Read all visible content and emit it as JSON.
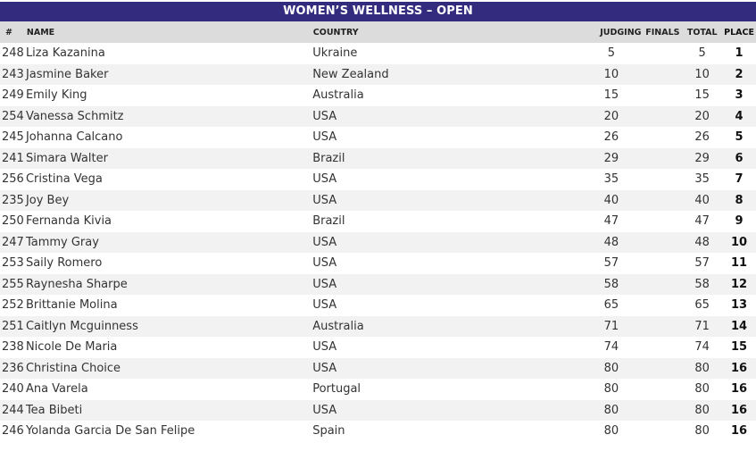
{
  "title": "WOMEN’S WELLNESS – OPEN",
  "headers": {
    "num": "#",
    "name": "NAME",
    "country": "COUNTRY",
    "judging": "JUDGING",
    "finals": "FINALS",
    "total": "TOTAL",
    "place": "PLACE"
  },
  "rows": [
    {
      "num": "248",
      "name": "Liza Kazanina",
      "country": "Ukraine",
      "judging": "5",
      "finals": "",
      "total": "5",
      "place": "1"
    },
    {
      "num": "243",
      "name": "Jasmine Baker",
      "country": "New Zealand",
      "judging": "10",
      "finals": "",
      "total": "10",
      "place": "2"
    },
    {
      "num": "249",
      "name": "Emily King",
      "country": "Australia",
      "judging": "15",
      "finals": "",
      "total": "15",
      "place": "3"
    },
    {
      "num": "254",
      "name": "Vanessa Schmitz",
      "country": "USA",
      "judging": "20",
      "finals": "",
      "total": "20",
      "place": "4"
    },
    {
      "num": "245",
      "name": "Johanna Calcano",
      "country": "USA",
      "judging": "26",
      "finals": "",
      "total": "26",
      "place": "5"
    },
    {
      "num": "241",
      "name": "Simara Walter",
      "country": "Brazil",
      "judging": "29",
      "finals": "",
      "total": "29",
      "place": "6"
    },
    {
      "num": "256",
      "name": "Cristina Vega",
      "country": "USA",
      "judging": "35",
      "finals": "",
      "total": "35",
      "place": "7"
    },
    {
      "num": "235",
      "name": "Joy Bey",
      "country": "USA",
      "judging": "40",
      "finals": "",
      "total": "40",
      "place": "8"
    },
    {
      "num": "250",
      "name": "Fernanda Kivia",
      "country": "Brazil",
      "judging": "47",
      "finals": "",
      "total": "47",
      "place": "9"
    },
    {
      "num": "247",
      "name": "Tammy Gray",
      "country": "USA",
      "judging": "48",
      "finals": "",
      "total": "48",
      "place": "10"
    },
    {
      "num": "253",
      "name": "Saily Romero",
      "country": "USA",
      "judging": "57",
      "finals": "",
      "total": "57",
      "place": "11"
    },
    {
      "num": "255",
      "name": "Raynesha Sharpe",
      "country": "USA",
      "judging": "58",
      "finals": "",
      "total": "58",
      "place": "12"
    },
    {
      "num": "252",
      "name": "Brittanie Molina",
      "country": "USA",
      "judging": "65",
      "finals": "",
      "total": "65",
      "place": "13"
    },
    {
      "num": "251",
      "name": "Caitlyn Mcguinness",
      "country": "Australia",
      "judging": "71",
      "finals": "",
      "total": "71",
      "place": "14"
    },
    {
      "num": "238",
      "name": "Nicole De Maria",
      "country": "USA",
      "judging": "74",
      "finals": "",
      "total": "74",
      "place": "15"
    },
    {
      "num": "236",
      "name": "Christina Choice",
      "country": "USA",
      "judging": "80",
      "finals": "",
      "total": "80",
      "place": "16"
    },
    {
      "num": "240",
      "name": "Ana Varela",
      "country": "Portugal",
      "judging": "80",
      "finals": "",
      "total": "80",
      "place": "16"
    },
    {
      "num": "244",
      "name": "Tea Bibeti",
      "country": "USA",
      "judging": "80",
      "finals": "",
      "total": "80",
      "place": "16"
    },
    {
      "num": "246",
      "name": "Yolanda Garcia De San Felipe",
      "country": "Spain",
      "judging": "80",
      "finals": "",
      "total": "80",
      "place": "16"
    }
  ],
  "colors": {
    "title_bg": "#322b7e",
    "header_bg": "#dcdcdc",
    "stripe_bg": "#f2f2f2"
  }
}
